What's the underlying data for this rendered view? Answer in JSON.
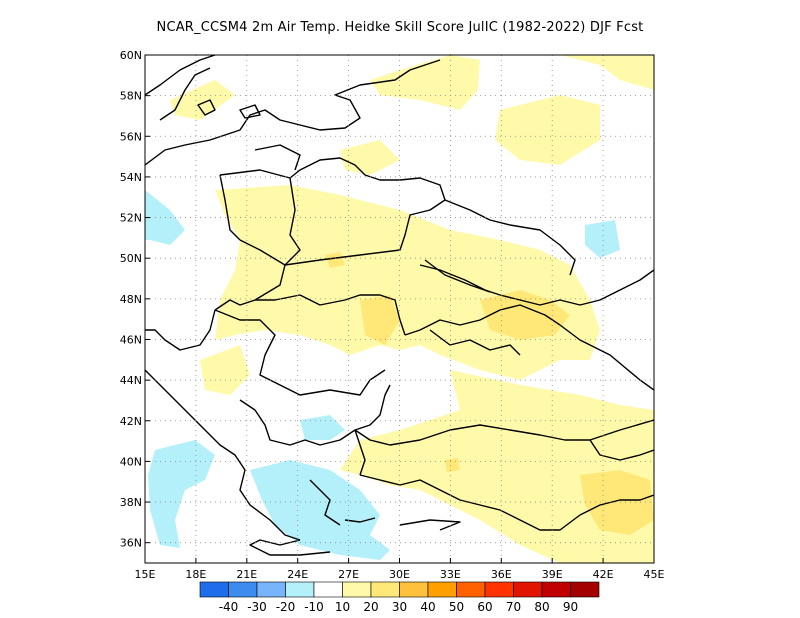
{
  "title": "NCAR_CCSM4  2m Air Temp. Heidke Skill Score JulIC (1982-2022) DJF Fcst",
  "map": {
    "lon_ticks": [
      "15E",
      "18E",
      "21E",
      "24E",
      "27E",
      "30E",
      "33E",
      "36E",
      "39E",
      "42E",
      "45E"
    ],
    "lat_ticks": [
      "60N",
      "58N",
      "56N",
      "54N",
      "52N",
      "50N",
      "48N",
      "46N",
      "44N",
      "42N",
      "40N",
      "38N",
      "36N"
    ],
    "lon_range": [
      15,
      45
    ],
    "lat_range": [
      35,
      60
    ],
    "grid": "dotted"
  },
  "colorbar": {
    "colors": [
      "#1e6eeb",
      "#3c8cf0",
      "#78b4fa",
      "#b4f0fa",
      "#ffffff",
      "#fffaaa",
      "#ffe878",
      "#ffc03c",
      "#ffa000",
      "#ff6000",
      "#ff3200",
      "#e11400",
      "#c00000",
      "#a50000"
    ],
    "labels": [
      "-40",
      "-30",
      "-20",
      "-10",
      "10",
      "20",
      "30",
      "40",
      "50",
      "60",
      "70",
      "80",
      "90"
    ]
  }
}
